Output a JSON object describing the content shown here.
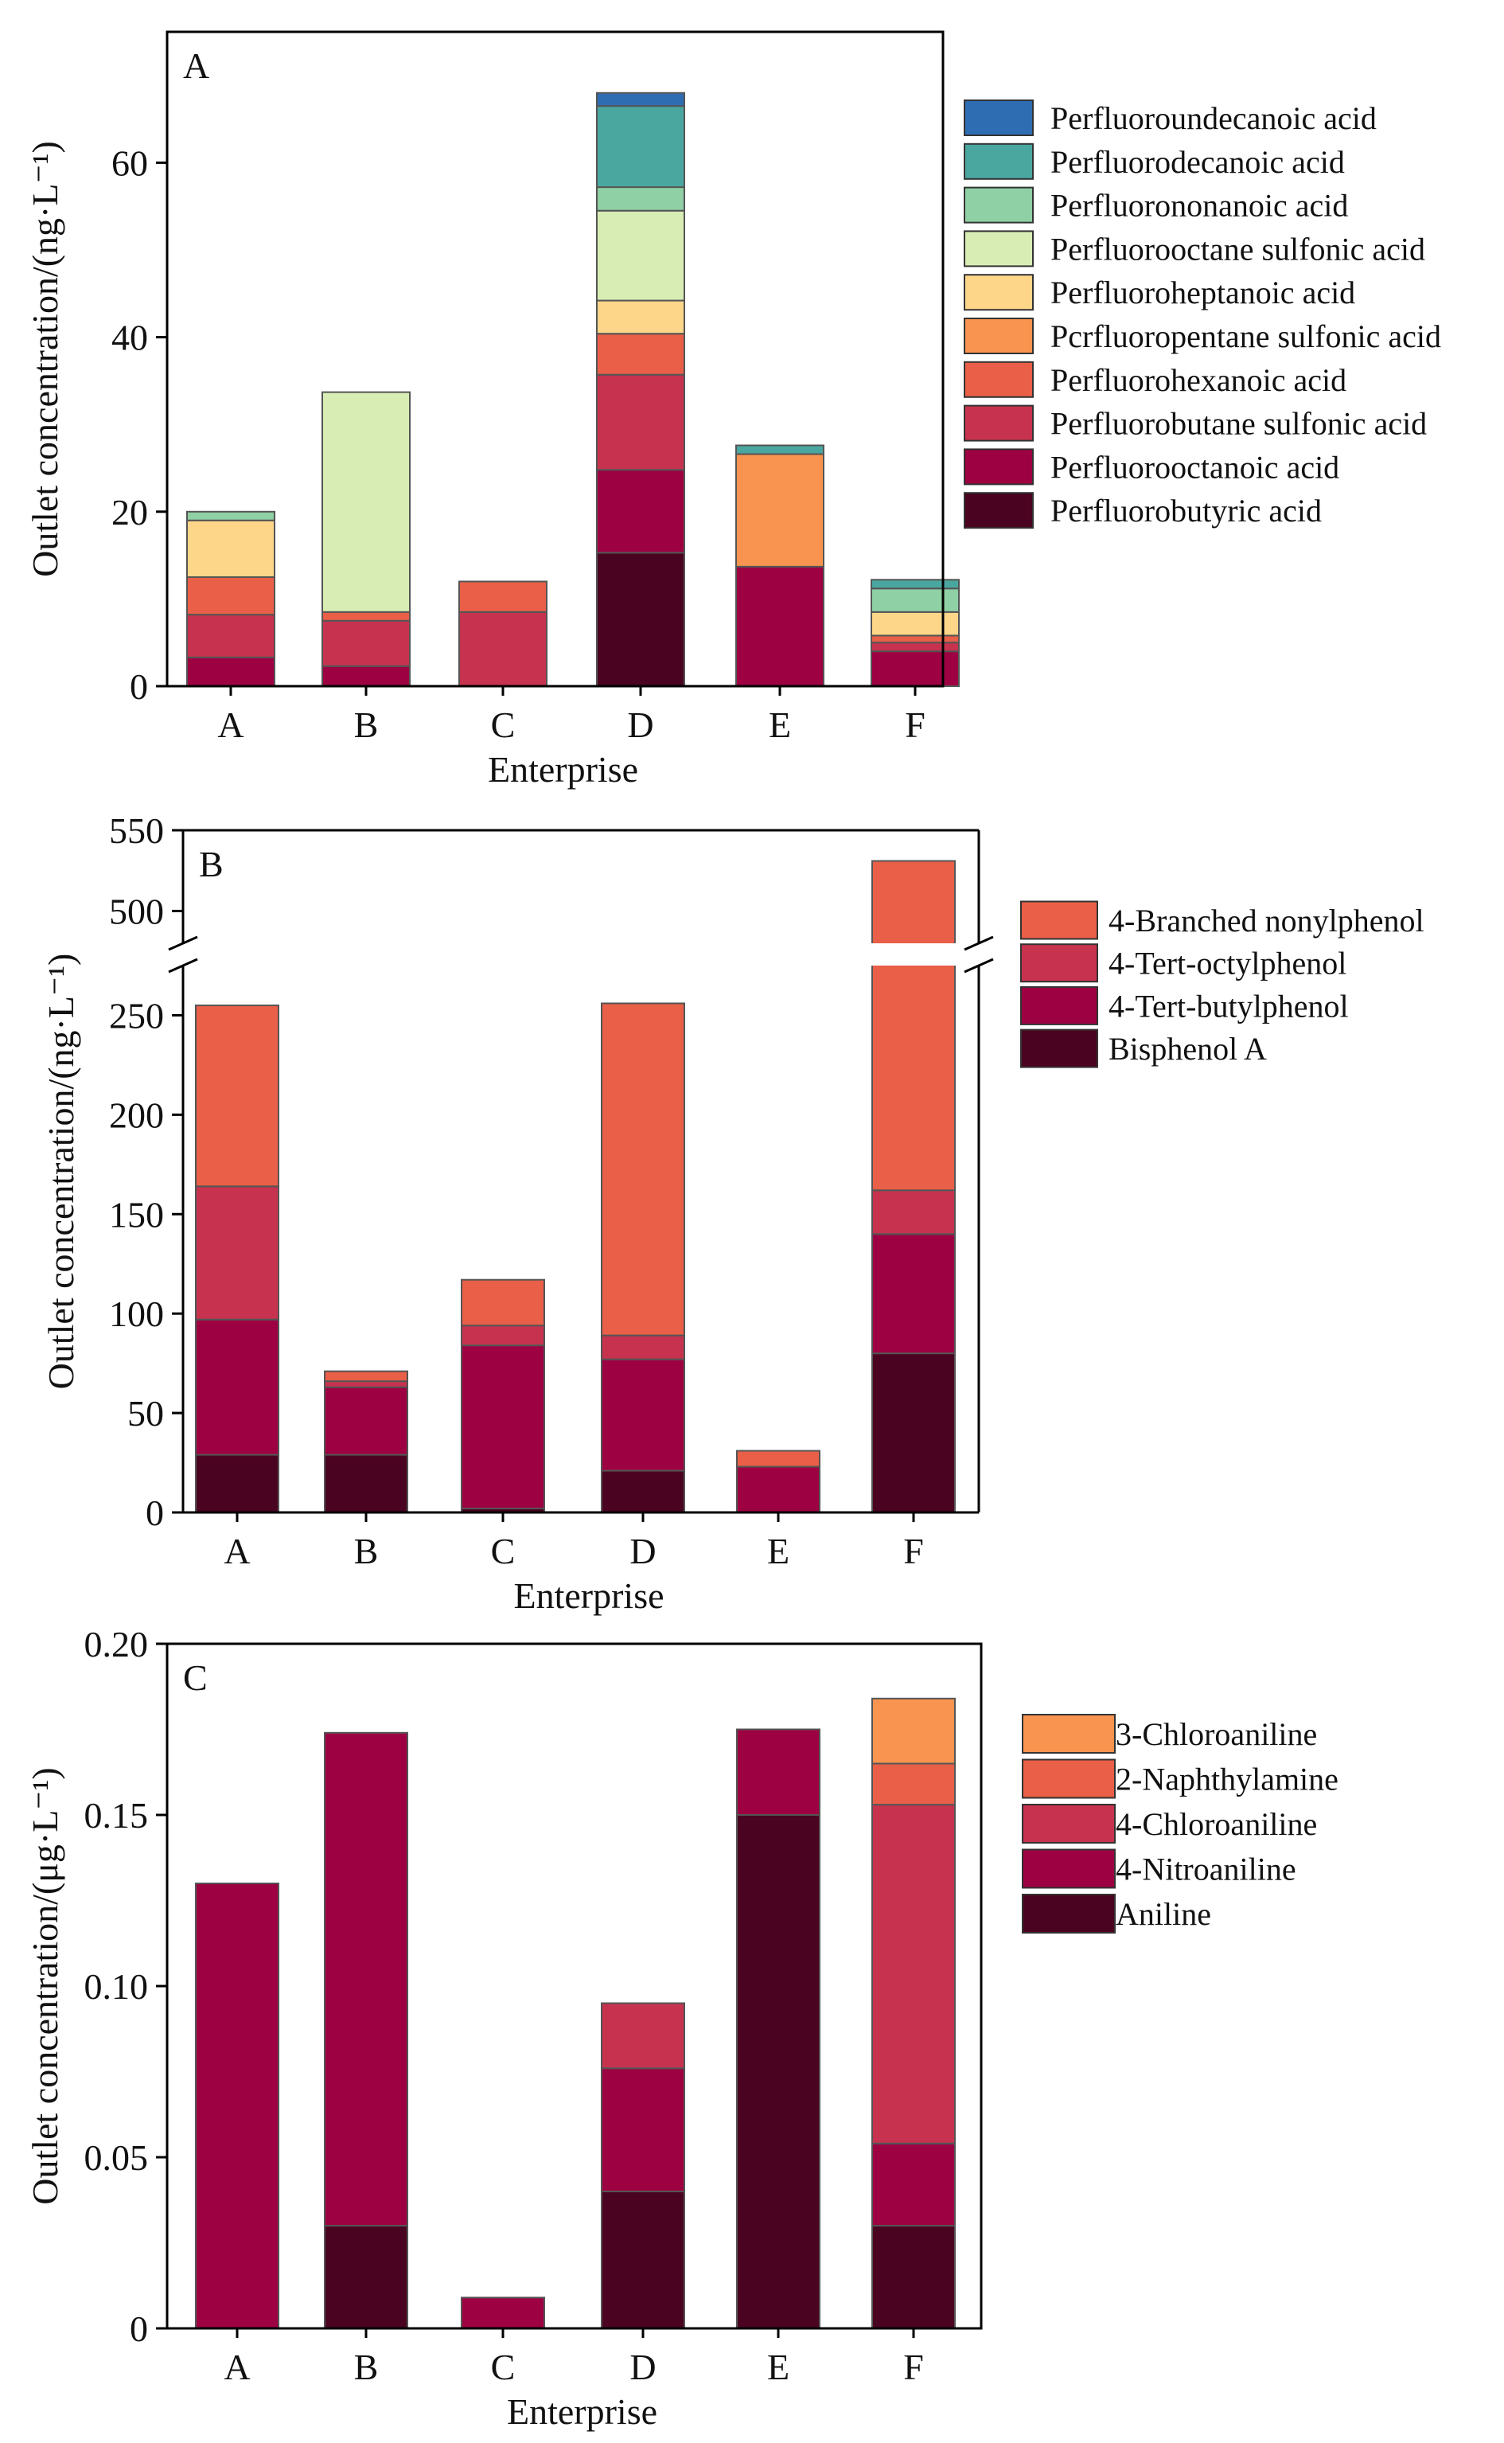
{
  "chart_data": [
    {
      "id": "A",
      "type": "bar",
      "stacked": true,
      "panel_label": "A",
      "xlabel": "Enterprise",
      "ylabel": "Outlet concentration/(ng·L⁻¹)",
      "categories": [
        "A",
        "B",
        "C",
        "D",
        "E",
        "F"
      ],
      "ylim": [
        0,
        75
      ],
      "yticks": [
        0,
        20,
        40,
        60
      ],
      "legend_position": "right",
      "series": [
        {
          "name": "Perfluorobutyric acid",
          "color": "#4a0320",
          "values": [
            0,
            0,
            0,
            15.3,
            0,
            0
          ]
        },
        {
          "name": "Perfluorooctanoic acid",
          "color": "#9e0142",
          "values": [
            3.3,
            2.3,
            0,
            9.5,
            13.7,
            4.0
          ]
        },
        {
          "name": "Perfluorobutane sulfonic acid",
          "color": "#c7334e",
          "values": [
            4.9,
            5.2,
            8.5,
            10.9,
            0,
            1.0
          ]
        },
        {
          "name": "Perfluorohexanoic acid",
          "color": "#e95f47",
          "values": [
            4.3,
            1.0,
            3.5,
            4.7,
            0,
            0.8
          ]
        },
        {
          "name": "Pcrfluoropentane sulfonic acid",
          "color": "#f8944f",
          "values": [
            0,
            0,
            0,
            0,
            12.9,
            0
          ]
        },
        {
          "name": "Perfluoroheptanoic acid",
          "color": "#fed68a",
          "values": [
            6.5,
            0,
            0,
            3.8,
            0,
            2.7
          ]
        },
        {
          "name": "Perfluorooctane sulfonic acid",
          "color": "#d8edb4",
          "values": [
            0,
            25.2,
            0,
            10.3,
            0,
            0
          ]
        },
        {
          "name": "Perfluorononanoic acid",
          "color": "#8fd0a4",
          "values": [
            1.0,
            0,
            0,
            2.7,
            0,
            2.7
          ]
        },
        {
          "name": "Perfluorodecanoic acid",
          "color": "#4aa7a0",
          "values": [
            0,
            0,
            0,
            9.3,
            1.0,
            1.0
          ]
        },
        {
          "name": "Perfluoroundecanoic acid",
          "color": "#2f6db2",
          "values": [
            0,
            0,
            0,
            1.5,
            0,
            0
          ]
        }
      ]
    },
    {
      "id": "B",
      "type": "bar",
      "stacked": true,
      "panel_label": "B",
      "xlabel": "Enterprise",
      "ylabel": "Outlet concentration/(ng·L⁻¹)",
      "categories": [
        "A",
        "B",
        "C",
        "D",
        "E",
        "F"
      ],
      "ylim_lower": [
        0,
        275
      ],
      "ylim_upper": [
        480,
        550
      ],
      "yticks_lower": [
        0,
        50,
        100,
        150,
        200,
        250
      ],
      "yticks_upper": [
        500,
        550
      ],
      "axis_break": true,
      "legend_position": "right",
      "series": [
        {
          "name": "Bisphenol A",
          "color": "#4a0320",
          "values": [
            29,
            29,
            2,
            21,
            0,
            80
          ]
        },
        {
          "name": "4-Tert-butylphenol",
          "color": "#9e0142",
          "values": [
            68,
            34,
            82,
            56,
            23,
            60
          ]
        },
        {
          "name": "4-Tert-octylphenol",
          "color": "#c7334e",
          "values": [
            67,
            3,
            10,
            12,
            0,
            22
          ]
        },
        {
          "name": "4-Branched nonylphenol",
          "color": "#e95f47",
          "values": [
            91,
            5,
            23,
            167,
            8,
            369
          ]
        }
      ]
    },
    {
      "id": "C",
      "type": "bar",
      "stacked": true,
      "panel_label": "C",
      "xlabel": "Enterprise",
      "ylabel": "Outlet concentration/(μg·L⁻¹)",
      "categories": [
        "A",
        "B",
        "C",
        "D",
        "E",
        "F"
      ],
      "ylim": [
        0,
        0.2
      ],
      "yticks": [
        0,
        0.05,
        0.1,
        0.15,
        0.2
      ],
      "ytick_labels": [
        "0",
        "0.05",
        "0.10",
        "0.15",
        "0.20"
      ],
      "legend_position": "right",
      "series": [
        {
          "name": "Aniline",
          "color": "#4a0320",
          "values": [
            0,
            0.03,
            0,
            0.04,
            0.15,
            0.03
          ]
        },
        {
          "name": "4-Nitroaniline",
          "color": "#9e0142",
          "values": [
            0.13,
            0.144,
            0.009,
            0.036,
            0.025,
            0.024
          ]
        },
        {
          "name": "4-Chloroaniline",
          "color": "#c7334e",
          "values": [
            0,
            0,
            0,
            0.019,
            0,
            0.099
          ]
        },
        {
          "name": "2-Naphthylamine",
          "color": "#e95f47",
          "values": [
            0,
            0,
            0,
            0,
            0,
            0.012
          ]
        },
        {
          "name": "3-Chloroaniline",
          "color": "#f8944f",
          "values": [
            0,
            0,
            0,
            0,
            0,
            0.019
          ]
        }
      ]
    }
  ]
}
